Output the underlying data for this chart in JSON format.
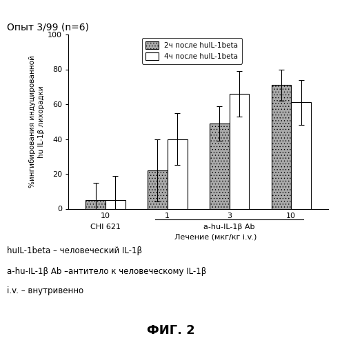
{
  "title": "Опыт 3/99 (n=6)",
  "ylabel_line1": "%ингибирования индуцированной",
  "ylabel_line2": "hu IL-1β лихорадки",
  "xlabel": "Лечение (мкг/кг i.v.)",
  "ylim": [
    0,
    100
  ],
  "yticks": [
    0,
    20,
    40,
    60,
    80,
    100
  ],
  "bar1_values": [
    5,
    22,
    49,
    71
  ],
  "bar1_errors": [
    10,
    18,
    10,
    9
  ],
  "bar2_values": [
    5,
    40,
    66,
    61
  ],
  "bar2_errors": [
    14,
    15,
    13,
    13
  ],
  "bar1_hatch": "....",
  "bar2_hatch": "",
  "bar1_color": "#aaaaaa",
  "bar2_color": "#ffffff",
  "legend1": "2ч после huIL-1beta",
  "legend2": "4ч после huIL-1beta",
  "bar_width": 0.32,
  "doses": [
    "10",
    "1",
    "3",
    "10"
  ],
  "group1_label": "CHI 621",
  "group2_label": "a-hu-IL-1β Ab",
  "footnote1": "huIL-1beta – человеческий IL-1β",
  "footnote2": "a-hu-IL-1β Ab –антитело к человеческому IL-1β",
  "footnote3": "i.v. – внутривенно",
  "fig_label": "ФИГ. 2"
}
